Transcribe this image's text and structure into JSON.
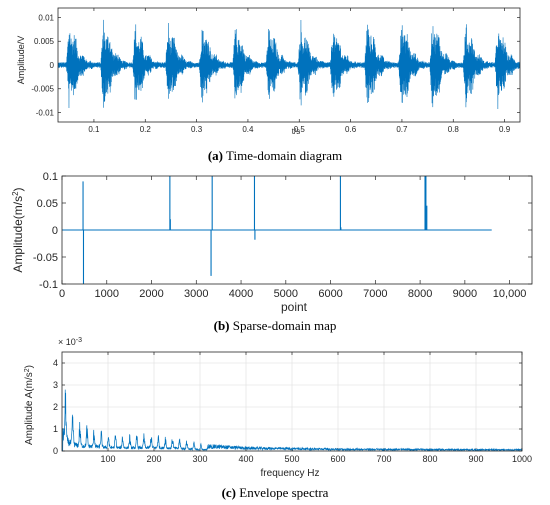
{
  "colors": {
    "signal": "#0072BD",
    "axis": "#262626",
    "grid": "#e6e6e6"
  },
  "chart_data": [
    {
      "type": "line",
      "caption_label": "(a)",
      "caption_text": " Time-domain diagram",
      "xlabel": "t/s",
      "ylabel": "Amplitude/V",
      "xlim": [
        0.03,
        0.93
      ],
      "ylim": [
        -0.012,
        0.012
      ],
      "xticks": [
        0.1,
        0.2,
        0.3,
        0.4,
        0.5,
        0.6,
        0.7,
        0.8,
        0.9
      ],
      "xtick_labels": [
        "0.1",
        "0.2",
        "0.3",
        "0.4",
        "0.5",
        "0.6",
        "0.7",
        "0.8",
        "0.9"
      ],
      "yticks": [
        -0.01,
        -0.005,
        0,
        0.005,
        0.01
      ],
      "ytick_labels": [
        "-0.01",
        "-0.005",
        "0",
        "0.005",
        "0.01"
      ],
      "grid": false,
      "bursts_t": [
        0.052,
        0.119,
        0.181,
        0.245,
        0.311,
        0.376,
        0.441,
        0.503,
        0.566,
        0.633,
        0.699,
        0.76,
        0.825,
        0.887
      ],
      "burst_peaks": [
        0.0105,
        0.011,
        0.0098,
        0.0096,
        0.0102,
        0.0095,
        0.0094,
        0.0103,
        0.0095,
        0.0108,
        0.0112,
        0.0115,
        0.0098,
        0.0096
      ]
    },
    {
      "type": "line",
      "caption_label": "(b)",
      "caption_text": " Sparse-domain map",
      "xlabel": "point",
      "ylabel": "Amplitude(m/s",
      "ylabel_sup": "2",
      "ylabel_close": ")",
      "xlim": [
        0,
        10500
      ],
      "ylim": [
        -0.1,
        0.1
      ],
      "xticks": [
        0,
        1000,
        2000,
        3000,
        4000,
        5000,
        6000,
        7000,
        8000,
        9000,
        10000
      ],
      "xtick_labels": [
        "0",
        "1000",
        "2000",
        "3000",
        "4000",
        "5000",
        "6000",
        "7000",
        "8000",
        "9000",
        "10,000"
      ],
      "yticks": [
        -0.1,
        -0.05,
        0,
        0.05,
        0.1
      ],
      "ytick_labels": [
        "-0.1",
        "-0.05",
        "0",
        "0.05",
        "0.1"
      ],
      "grid": false,
      "line_range": [
        0,
        9600
      ],
      "spikes": [
        {
          "x": 470,
          "y": 0.09
        },
        {
          "x": 480,
          "y": -0.1
        },
        {
          "x": 2410,
          "y": 0.1
        },
        {
          "x": 2420,
          "y": 0.02
        },
        {
          "x": 3330,
          "y": -0.085
        },
        {
          "x": 3355,
          "y": 0.1
        },
        {
          "x": 4300,
          "y": 0.1
        },
        {
          "x": 4310,
          "y": -0.018
        },
        {
          "x": 6220,
          "y": 0.1
        },
        {
          "x": 6230,
          "y": 0.005
        },
        {
          "x": 8110,
          "y": 0.1
        },
        {
          "x": 8130,
          "y": 0.1
        },
        {
          "x": 8150,
          "y": 0.045
        }
      ]
    },
    {
      "type": "line",
      "caption_label": "(c)",
      "caption_text": " Envelope spectra",
      "xlabel": "frequency Hz",
      "ylabel": "Amplitude A(m/s",
      "ylabel_sup": "2",
      "ylabel_close": ")",
      "exponent_base": "× 10",
      "exponent_power": "-3",
      "xlim": [
        0,
        1000
      ],
      "ylim": [
        0,
        4.5
      ],
      "xticks": [
        100,
        200,
        300,
        400,
        500,
        600,
        700,
        800,
        900,
        1000
      ],
      "xtick_labels": [
        "100",
        "200",
        "300",
        "400",
        "500",
        "600",
        "700",
        "800",
        "900",
        "1000"
      ],
      "yticks": [
        0,
        1,
        2,
        3,
        4
      ],
      "ytick_labels": [
        "0",
        "1",
        "2",
        "3",
        "4"
      ],
      "grid": true,
      "fundamental_hz": 15.5,
      "peak_points": [
        {
          "x": 2,
          "y": 4.2
        },
        {
          "x": 8,
          "y": 3.0
        },
        {
          "x": 15,
          "y": 2.2
        },
        {
          "x": 31,
          "y": 1.5
        },
        {
          "x": 50,
          "y": 1.3
        },
        {
          "x": 100,
          "y": 0.9
        },
        {
          "x": 150,
          "y": 0.8
        },
        {
          "x": 200,
          "y": 0.85
        },
        {
          "x": 250,
          "y": 0.7
        },
        {
          "x": 300,
          "y": 0.35
        },
        {
          "x": 400,
          "y": 0.2
        },
        {
          "x": 600,
          "y": 0.12
        },
        {
          "x": 1000,
          "y": 0.08
        }
      ]
    }
  ]
}
